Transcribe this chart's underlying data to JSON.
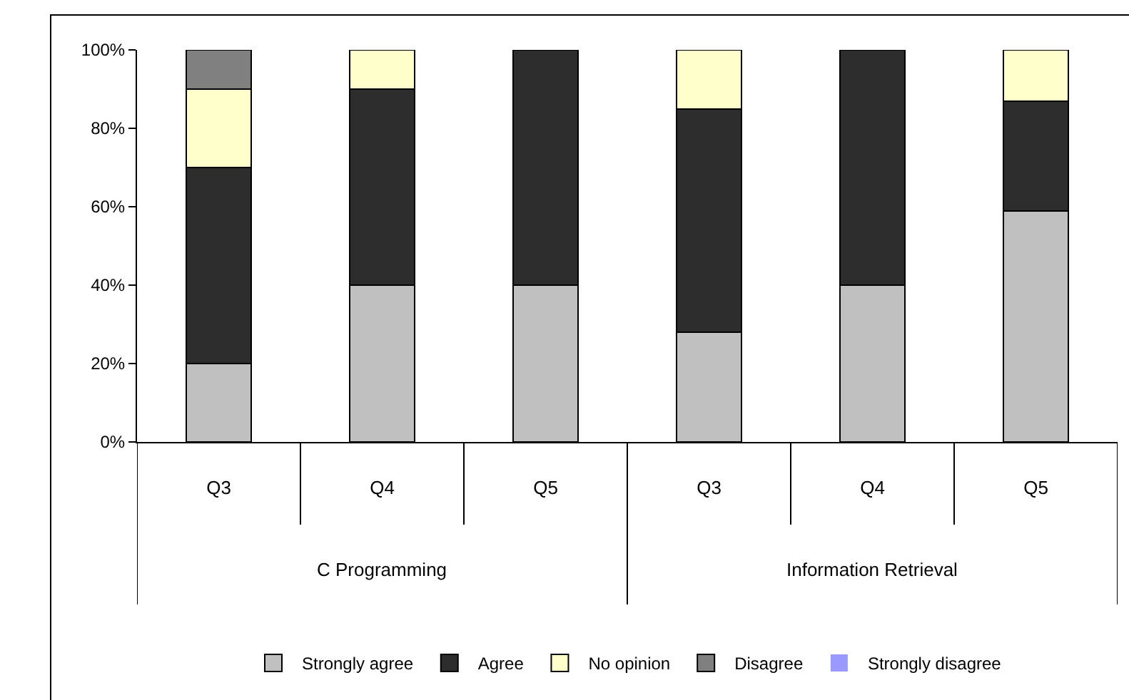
{
  "chart_data": {
    "type": "bar",
    "stacked": true,
    "categories": [
      "Q3",
      "Q4",
      "Q5",
      "Q3",
      "Q4",
      "Q5"
    ],
    "annotations": [
      "C Programming",
      "Information Retrieval"
    ],
    "series": [
      {
        "name": "Strongly agree",
        "color": "#c0c0c0",
        "values": [
          20,
          40,
          40,
          28,
          40,
          59
        ]
      },
      {
        "name": "Agree",
        "color": "#2d2d2d",
        "values": [
          50,
          50,
          60,
          57,
          60,
          28
        ]
      },
      {
        "name": "No opinion",
        "color": "#ffffcc",
        "values": [
          20,
          10,
          0,
          15,
          0,
          13
        ]
      },
      {
        "name": "Disagree",
        "color": "#808080",
        "values": [
          10,
          0,
          0,
          0,
          0,
          0
        ]
      },
      {
        "name": "Strongly disagree",
        "color": "#9999ff",
        "values": [
          0,
          0,
          0,
          0,
          0,
          0
        ]
      }
    ],
    "ylim": [
      0,
      100
    ],
    "yticks": [
      {
        "value": 0,
        "label": "0%"
      },
      {
        "value": 20,
        "label": "20%"
      },
      {
        "value": 40,
        "label": "40%"
      },
      {
        "value": 60,
        "label": "60%"
      },
      {
        "value": 80,
        "label": "80%"
      },
      {
        "value": 100,
        "label": "100%"
      }
    ],
    "legend": "bottom"
  }
}
